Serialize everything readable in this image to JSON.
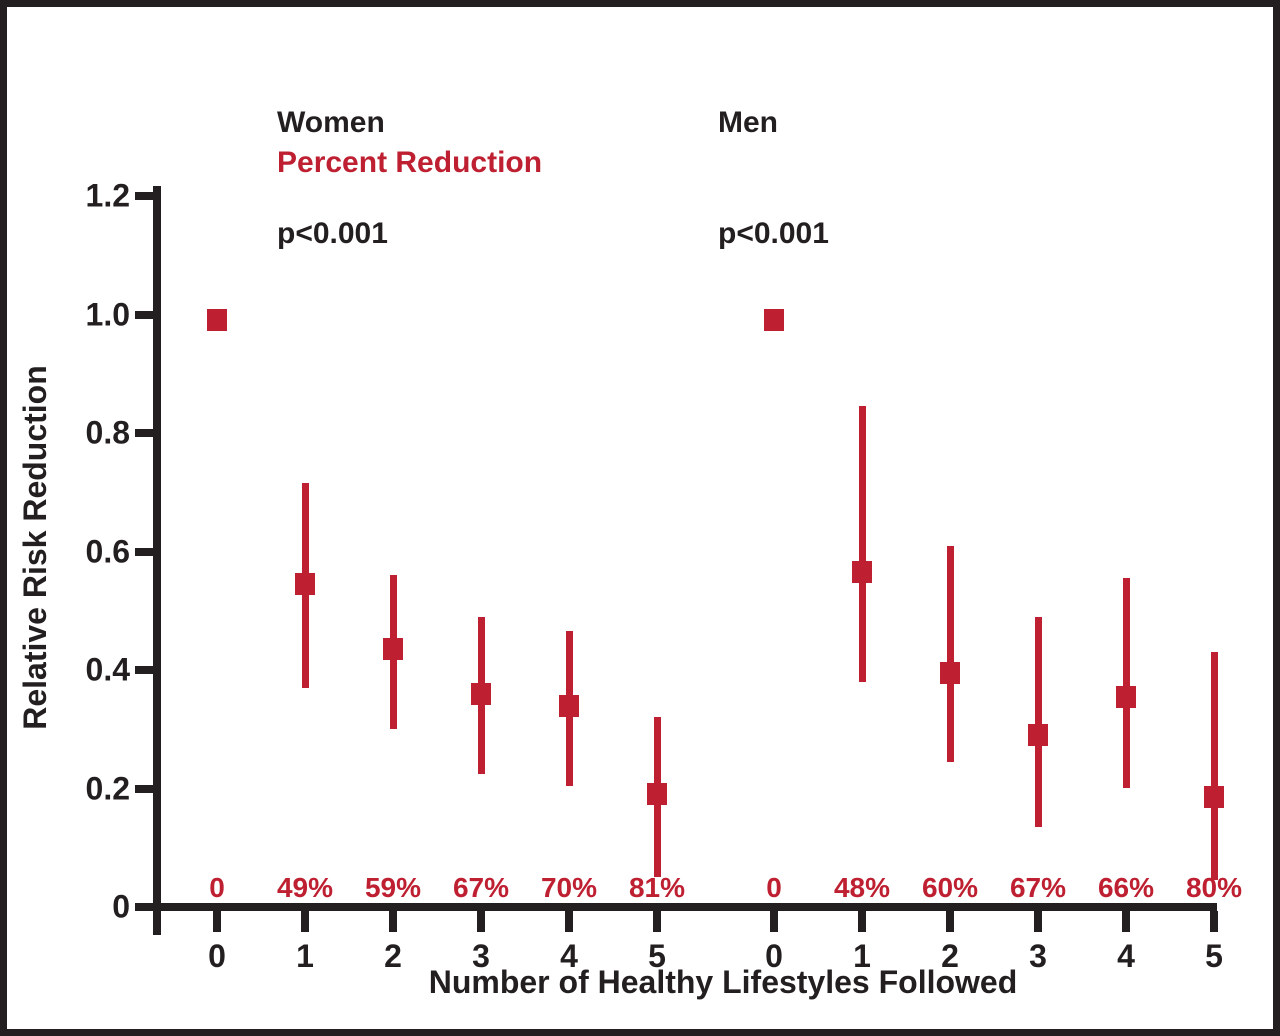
{
  "figure": {
    "background_color": "#ffffff",
    "border_color": "#231f20"
  },
  "chart_data": {
    "type": "scatter",
    "marker_shape": "square",
    "title": "",
    "xlabel": "Number of Healthy Lifestyles Followed",
    "ylabel": "Relative Risk Reduction",
    "ylim": [
      0,
      1.2
    ],
    "y_ticks": [
      0,
      0.2,
      0.4,
      0.6,
      0.8,
      1.0,
      1.2
    ],
    "y_tick_labels": [
      "0",
      "0.2",
      "0.4",
      "0.6",
      "0.8",
      "1.0",
      "1.2"
    ],
    "grid": "off",
    "legend": "none",
    "annotations": {
      "percent_reduction_header": "Percent Reduction"
    },
    "colors": {
      "marker": "#be2032",
      "percent_text": "#be2032",
      "axis": "#231f20",
      "text": "#231f20"
    },
    "groups": [
      {
        "name": "Women",
        "p_value": "p<0.001",
        "categories": [
          "0",
          "1",
          "2",
          "3",
          "4",
          "5"
        ],
        "points": [
          {
            "x": "0",
            "rr": 0.99,
            "lo": null,
            "hi": null,
            "percent_reduction": "0"
          },
          {
            "x": "1",
            "rr": 0.545,
            "lo": 0.37,
            "hi": 0.715,
            "percent_reduction": "49%"
          },
          {
            "x": "2",
            "rr": 0.435,
            "lo": 0.3,
            "hi": 0.56,
            "percent_reduction": "59%"
          },
          {
            "x": "3",
            "rr": 0.36,
            "lo": 0.225,
            "hi": 0.49,
            "percent_reduction": "67%"
          },
          {
            "x": "4",
            "rr": 0.34,
            "lo": 0.205,
            "hi": 0.465,
            "percent_reduction": "70%"
          },
          {
            "x": "5",
            "rr": 0.19,
            "lo": 0.05,
            "hi": 0.32,
            "percent_reduction": "81%"
          }
        ]
      },
      {
        "name": "Men",
        "p_value": "p<0.001",
        "categories": [
          "0",
          "1",
          "2",
          "3",
          "4",
          "5"
        ],
        "points": [
          {
            "x": "0",
            "rr": 0.99,
            "lo": null,
            "hi": null,
            "percent_reduction": "0"
          },
          {
            "x": "1",
            "rr": 0.565,
            "lo": 0.38,
            "hi": 0.845,
            "percent_reduction": "48%"
          },
          {
            "x": "2",
            "rr": 0.395,
            "lo": 0.245,
            "hi": 0.61,
            "percent_reduction": "60%"
          },
          {
            "x": "3",
            "rr": 0.29,
            "lo": 0.135,
            "hi": 0.49,
            "percent_reduction": "67%"
          },
          {
            "x": "4",
            "rr": 0.355,
            "lo": 0.2,
            "hi": 0.555,
            "percent_reduction": "66%"
          },
          {
            "x": "5",
            "rr": 0.185,
            "lo": 0.045,
            "hi": 0.43,
            "percent_reduction": "80%"
          }
        ]
      }
    ]
  }
}
